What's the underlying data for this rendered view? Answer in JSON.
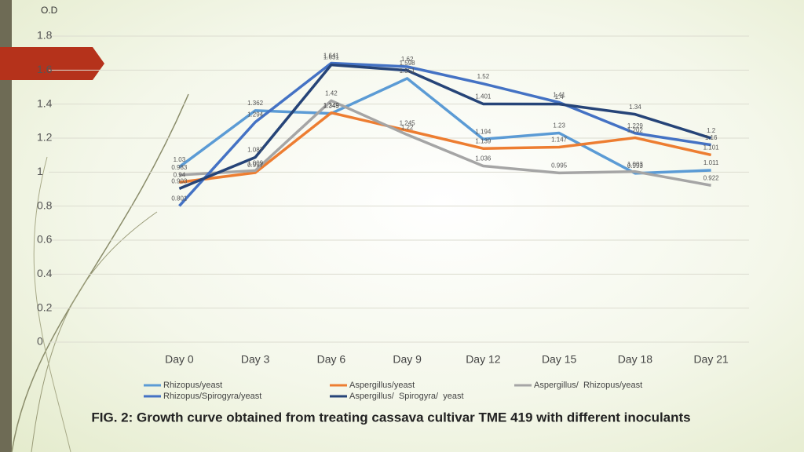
{
  "chart_data": {
    "type": "line",
    "title": "FIG. 2: Growth curve obtained from treating cassava cultivar TME 419 with different inoculants",
    "y_label": "O.D",
    "categories": [
      "Day 0",
      "Day 3",
      "Day 6",
      "Day 9",
      "Day 12",
      "Day 15",
      "Day 18",
      "Day 21"
    ],
    "ylim": [
      0,
      1.8
    ],
    "yticks": [
      0,
      0.2,
      0.4,
      0.6,
      0.8,
      1,
      1.2,
      1.4,
      1.6,
      1.8
    ],
    "grid": true,
    "legend": "bottom",
    "series": [
      {
        "name": "Rhizopus/yeast",
        "color": "#5b9bd5",
        "values": [
          1.03,
          1.362,
          1.345,
          1.551,
          1.194,
          1.23,
          0.993,
          1.011
        ]
      },
      {
        "name": "Aspergillus/yeast",
        "color": "#ed7d31",
        "values": [
          0.94,
          0.997,
          1.349,
          1.245,
          1.139,
          1.147,
          1.202,
          1.101
        ]
      },
      {
        "name": "Aspergillus/  Rhizopus/yeast",
        "color": "#a5a5a5",
        "values": [
          0.983,
          1.009,
          1.42,
          1.22,
          1.036,
          0.995,
          1.003,
          0.922
        ]
      },
      {
        "name": "Rhizopus/Spirogyra/yeast",
        "color": "#4472c4",
        "values": [
          0.801,
          1.294,
          1.641,
          1.62,
          1.52,
          1.41,
          1.229,
          1.16
        ]
      },
      {
        "name": "Aspergillus/  Spirogyra/  yeast",
        "color": "#264478",
        "values": [
          0.903,
          1.087,
          1.631,
          1.598,
          1.401,
          1.4,
          1.34,
          1.2
        ]
      }
    ]
  }
}
